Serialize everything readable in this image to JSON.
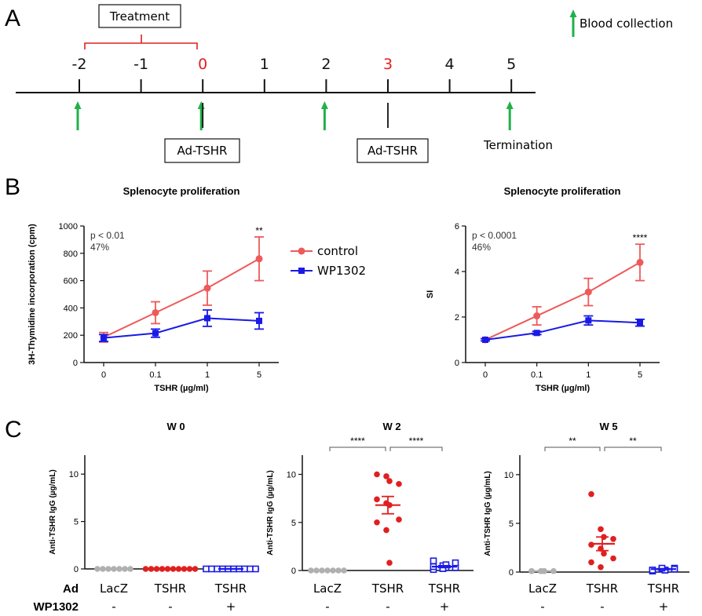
{
  "panel_a": {
    "letter": "A",
    "treatment_label": "Treatment",
    "legend_label": "Blood collection",
    "weeks": [
      {
        "label": "-2",
        "highlight": false
      },
      {
        "label": "-1",
        "highlight": false
      },
      {
        "label": "0",
        "highlight": true
      },
      {
        "label": "1",
        "highlight": false
      },
      {
        "label": "2",
        "highlight": false
      },
      {
        "label": "3",
        "highlight": true
      },
      {
        "label": "4",
        "highlight": false
      },
      {
        "label": "5",
        "highlight": false
      }
    ],
    "blood_collection_weeks": [
      -2,
      0,
      2,
      5
    ],
    "injection_weeks": [
      0,
      3
    ],
    "injection_label": "Ad-TSHR",
    "termination_label": "Termination",
    "colors": {
      "highlight": "#e02020",
      "arrow": "#22b04b",
      "line": "#111111"
    }
  },
  "panel_b": {
    "letter": "B",
    "legend": [
      {
        "name": "control",
        "color": "#ee5a5a"
      },
      {
        "name": "WP1302",
        "color": "#1a1ae6"
      }
    ]
  },
  "panel_c": {
    "letter": "C",
    "row_labels": {
      "ad": "Ad",
      "wp": "WP1302"
    },
    "groups": [
      {
        "ad": "LacZ",
        "wp": "-"
      },
      {
        "ad": "TSHR",
        "wp": "-"
      },
      {
        "ad": "TSHR",
        "wp": "+"
      }
    ]
  },
  "chart_data": [
    {
      "type": "line",
      "title": "Splenocyte proliferation",
      "xlabel": "TSHR (µg/ml)",
      "ylabel": "3H-Thymidine incorporation (cpm)",
      "categories": [
        "0",
        "0.1",
        "1",
        "5"
      ],
      "ylim": [
        0,
        1000
      ],
      "yticks": [
        0,
        200,
        400,
        600,
        800,
        1000
      ],
      "annotation": [
        "p < 0.01",
        "47%"
      ],
      "significance": {
        "category": "5",
        "label": "**"
      },
      "series": [
        {
          "name": "control",
          "color": "#ee5a5a",
          "marker": "circle",
          "values": [
            185,
            365,
            545,
            760
          ],
          "errors": [
            35,
            80,
            125,
            160
          ]
        },
        {
          "name": "WP1302",
          "color": "#1a1ae6",
          "marker": "square",
          "values": [
            180,
            215,
            325,
            305
          ],
          "errors": [
            25,
            30,
            60,
            60
          ]
        }
      ]
    },
    {
      "type": "line",
      "title": "Splenocyte proliferation",
      "xlabel": "TSHR (µg/ml)",
      "ylabel": "SI",
      "categories": [
        "0",
        "0.1",
        "1",
        "5"
      ],
      "ylim": [
        0,
        6
      ],
      "yticks": [
        0,
        2,
        4,
        6
      ],
      "annotation": [
        "p < 0.0001",
        "46%"
      ],
      "significance": {
        "category": "5",
        "label": "****"
      },
      "series": [
        {
          "name": "control",
          "color": "#ee5a5a",
          "marker": "circle",
          "values": [
            1.0,
            2.05,
            3.1,
            4.4
          ],
          "errors": [
            0.05,
            0.4,
            0.6,
            0.8
          ]
        },
        {
          "name": "WP1302",
          "color": "#1a1ae6",
          "marker": "square",
          "values": [
            1.0,
            1.3,
            1.85,
            1.75
          ],
          "errors": [
            0.05,
            0.07,
            0.2,
            0.15
          ]
        }
      ]
    },
    {
      "type": "scatter",
      "title": "W 0",
      "ylabel": "Anti-TSHR IgG (µg/mL)",
      "ylim": [
        0,
        12
      ],
      "yticks": [
        0,
        5,
        10
      ],
      "comparisons": [],
      "groups": [
        {
          "name": "LacZ",
          "color": "#b0b0b0",
          "marker": "circle",
          "values": [
            0,
            0,
            0,
            0,
            0,
            0,
            0
          ],
          "mean": 0,
          "sem": 0
        },
        {
          "name": "TSHR",
          "color": "#e02020",
          "marker": "circle",
          "values": [
            0,
            0,
            0,
            0,
            0,
            0,
            0,
            0,
            0,
            0
          ],
          "mean": 0,
          "sem": 0
        },
        {
          "name": "TSHR + WP1302",
          "color": "#1a1ae6",
          "marker": "square-open",
          "values": [
            0,
            0,
            0,
            0,
            0,
            0,
            0,
            0,
            0,
            0
          ],
          "mean": 0,
          "sem": 0
        }
      ]
    },
    {
      "type": "scatter",
      "title": "W 2",
      "ylabel": "Anti-TSHR IgG (µg/mL)",
      "ylim": [
        0,
        12
      ],
      "yticks": [
        0,
        5,
        10
      ],
      "comparisons": [
        {
          "from": 0,
          "to": 1,
          "label": "****"
        },
        {
          "from": 1,
          "to": 2,
          "label": "****"
        }
      ],
      "groups": [
        {
          "name": "LacZ",
          "color": "#b0b0b0",
          "marker": "circle",
          "values": [
            0,
            0,
            0,
            0,
            0,
            0,
            0
          ],
          "mean": 0,
          "sem": 0
        },
        {
          "name": "TSHR",
          "color": "#e02020",
          "marker": "circle",
          "values": [
            10.0,
            9.8,
            9.3,
            9.0,
            7.4,
            7.0,
            6.8,
            5.3,
            5.0,
            4.2,
            0.8
          ],
          "mean": 6.8,
          "sem": 0.9
        },
        {
          "name": "TSHR + WP1302",
          "color": "#1a1ae6",
          "marker": "square-open",
          "values": [
            0.1,
            0.2,
            0.3,
            0.3,
            0.4,
            0.5,
            0.6,
            0.8,
            1.0,
            0.2
          ],
          "mean": 0.4,
          "sem": 0.1
        }
      ]
    },
    {
      "type": "scatter",
      "title": "W 5",
      "ylabel": "Anti-TSHR IgG (µg/mL)",
      "ylim": [
        0,
        12
      ],
      "yticks": [
        0,
        5,
        10
      ],
      "comparisons": [
        {
          "from": 0,
          "to": 1,
          "label": "**"
        },
        {
          "from": 1,
          "to": 2,
          "label": "**"
        }
      ],
      "groups": [
        {
          "name": "LacZ",
          "color": "#b0b0b0",
          "marker": "circle",
          "values": [
            0.1,
            0.1,
            0.1,
            0.1,
            0.1,
            0.1,
            0.1
          ],
          "mean": 0.1,
          "sem": 0
        },
        {
          "name": "TSHR",
          "color": "#e02020",
          "marker": "circle",
          "values": [
            8.0,
            4.4,
            3.6,
            3.4,
            2.8,
            2.4,
            1.9,
            1.4,
            1.0,
            0.5
          ],
          "mean": 2.9,
          "sem": 0.7
        },
        {
          "name": "TSHR + WP1302",
          "color": "#1a1ae6",
          "marker": "square-open",
          "values": [
            0.2,
            0.3,
            0.2,
            0.4,
            0.1,
            0.3,
            0.2,
            0.3,
            0.2,
            0.4
          ],
          "mean": 0.3,
          "sem": 0.05
        }
      ]
    }
  ]
}
